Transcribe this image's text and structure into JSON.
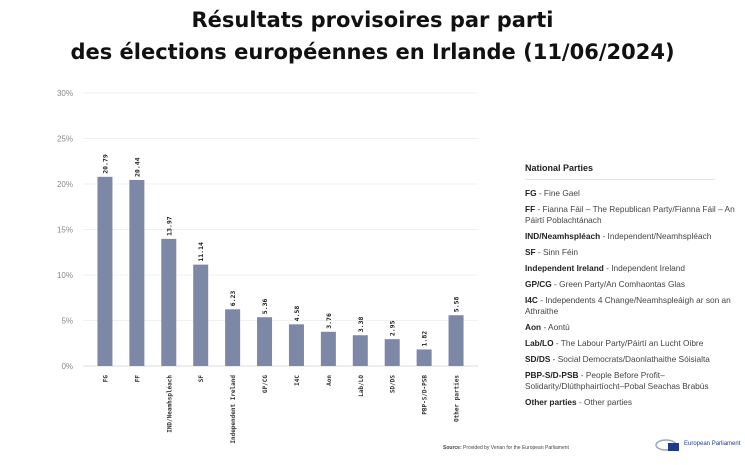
{
  "title_line1": "Résultats provisoires par parti",
  "title_line2": "des élections européennes en Irlande (11/06/2024)",
  "chart_data": {
    "type": "bar",
    "categories": [
      "FG",
      "FF",
      "IND/Neamhspléach",
      "SF",
      "Independent Ireland",
      "GP/CG",
      "I4C",
      "Aon",
      "Lab/LO",
      "SD/DS",
      "PBP-S/D-PSB",
      "Other parties"
    ],
    "values": [
      20.79,
      20.44,
      13.97,
      11.14,
      6.23,
      5.36,
      4.58,
      3.76,
      3.38,
      2.95,
      1.82,
      5.58
    ],
    "data_labels": [
      "20.79",
      "20.44",
      "13.97",
      "11.14",
      "6.23",
      "5.36",
      "4.58",
      "3.76",
      "3.38",
      "2.95",
      "1.82",
      "5.58"
    ],
    "yticks": [
      "0%",
      "5%",
      "10%",
      "15%",
      "20%",
      "25%",
      "30%"
    ],
    "ylim": [
      0,
      30
    ],
    "grid": true,
    "bar_color": "#7d88a6",
    "legend_placement": "right"
  },
  "legend": {
    "title": "National Parties",
    "items": [
      {
        "abbr": "FG",
        "name": "Fine Gael"
      },
      {
        "abbr": "FF",
        "name": "Fianna Fáil – The Republican Party/Fianna Fáil – An Páirtí Poblachtánach"
      },
      {
        "abbr": "IND/Neamhspléach",
        "name": "Independent/Neamhspléach"
      },
      {
        "abbr": "SF",
        "name": "Sinn Féin"
      },
      {
        "abbr": "Independent Ireland ",
        "name": "Independent Ireland"
      },
      {
        "abbr": "GP/CG",
        "name": "Green Party/An Comhaontas Glas"
      },
      {
        "abbr": "I4C",
        "name": "Independents 4 Change/Neamhspleáigh ar son an Athraithe"
      },
      {
        "abbr": "Aon",
        "name": "Aontú"
      },
      {
        "abbr": "Lab/LO",
        "name": "The Labour Party/Páirtí an Lucht Oibre"
      },
      {
        "abbr": "SD/DS",
        "name": "Social Democrats/Daonlathaithe Sóisialta"
      },
      {
        "abbr": "PBP-S/D-PSB",
        "name": "People Before Profit–Solidarity/Dlúthphairtíocht–Pobal Seachas Brabús"
      },
      {
        "abbr": "Other parties",
        "name": "Other parties"
      }
    ]
  },
  "source": {
    "label": "Source:",
    "text": "Provided by Verian for the European Parliament"
  },
  "logo_text": "European Parliament"
}
